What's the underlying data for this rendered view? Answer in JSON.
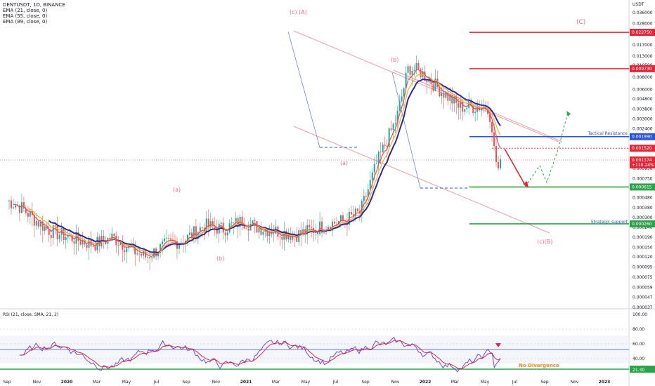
{
  "header": {
    "symbol_line": "DENTUSDT, 1D, BINANCE",
    "indicators": [
      "EMA (21, close, 0)",
      "EMA (55, close, 0)",
      "EMA (89, close, 0)"
    ],
    "currency": "USDT"
  },
  "rsi": {
    "label": "RSI (21, close, SMA, 21, 2)",
    "ticks": [
      "100.00",
      "80.00",
      "60.00",
      "40.00",
      "21.30"
    ],
    "note": "No Divergence"
  },
  "chart_data": {
    "type": "line",
    "y_scale": "log",
    "ylim": [
      3.7e-05,
      0.036
    ],
    "y_ticks": [
      "0.036000",
      "0.028000",
      "0.022000",
      "0.017000",
      "0.013000",
      "0.010500",
      "0.008000",
      "0.006000",
      "0.004800",
      "0.003800",
      "0.003000",
      "0.002400",
      "0.001900",
      "0.001500",
      "0.001200",
      "0.000950",
      "0.000750",
      "0.000600",
      "0.000480",
      "0.000380",
      "0.000300",
      "0.000240",
      "0.000190",
      "0.000150",
      "0.000120",
      "0.000095",
      "0.000075",
      "0.000059",
      "0.000047",
      "0.000037"
    ],
    "x_ticks": [
      "Sep",
      "Nov",
      "2020",
      "Mar",
      "May",
      "Jul",
      "Sep",
      "Nov",
      "2021",
      "Mar",
      "May",
      "Jul",
      "Sep",
      "Nov",
      "2022",
      "Mar",
      "May",
      "Jul",
      "Sep",
      "Nov",
      "2023"
    ],
    "price_levels": [
      {
        "value": 0.02275,
        "label": "0.022750",
        "color": "#e0283a"
      },
      {
        "value": 0.00973,
        "label": "0.009730",
        "color": "#e0283a"
      },
      {
        "value": 0.00199,
        "label": "0.001990",
        "color": "#2a55d4"
      },
      {
        "value": 0.00152,
        "label": "0.001520",
        "color": "#e0283a"
      },
      {
        "value": 0.000615,
        "label": "0.000615",
        "color": "#2ca24a"
      },
      {
        "value": 0.00026,
        "label": "0.000260",
        "color": "#2ca24a"
      }
    ],
    "current_price": {
      "value": "0.001174",
      "change": "+110.24%"
    },
    "level_labels": {
      "tactical": "Tactical Resistance",
      "strategic": "Strategic support"
    },
    "wave_labels": [
      "(c) (A)",
      "(C)",
      "(b)",
      "(a)",
      "(c)(B)",
      "(a)",
      "(b)"
    ],
    "series": [
      {
        "name": "EMA (21, close, 0)",
        "color": "#e05060"
      },
      {
        "name": "EMA (55, close, 0)",
        "color": "#f0b030"
      },
      {
        "name": "EMA (89, close, 0)",
        "color": "#2c2a9a"
      }
    ],
    "price_anchors": [
      [
        0.0,
        0.00045
      ],
      [
        0.03,
        0.00038
      ],
      [
        0.06,
        0.00028
      ],
      [
        0.09,
        0.00022
      ],
      [
        0.13,
        0.00019
      ],
      [
        0.18,
        0.00016
      ],
      [
        0.22,
        0.00019
      ],
      [
        0.26,
        0.00014
      ],
      [
        0.29,
        0.00012
      ],
      [
        0.33,
        0.00016
      ],
      [
        0.37,
        0.00018
      ],
      [
        0.41,
        0.00025
      ],
      [
        0.45,
        0.00023
      ],
      [
        0.49,
        0.00028
      ],
      [
        0.52,
        0.00024
      ],
      [
        0.56,
        0.00022
      ],
      [
        0.6,
        0.0002
      ],
      [
        0.64,
        0.00023
      ],
      [
        0.67,
        0.00026
      ],
      [
        0.7,
        0.00028
      ],
      [
        0.735,
        0.00034
      ],
      [
        0.77,
        0.0011
      ],
      [
        0.81,
        0.003
      ],
      [
        0.835,
        0.01
      ],
      [
        0.86,
        0.009
      ],
      [
        0.9,
        0.006
      ],
      [
        0.94,
        0.004
      ]
    ],
    "rsi_ylim": [
      20,
      100
    ]
  }
}
